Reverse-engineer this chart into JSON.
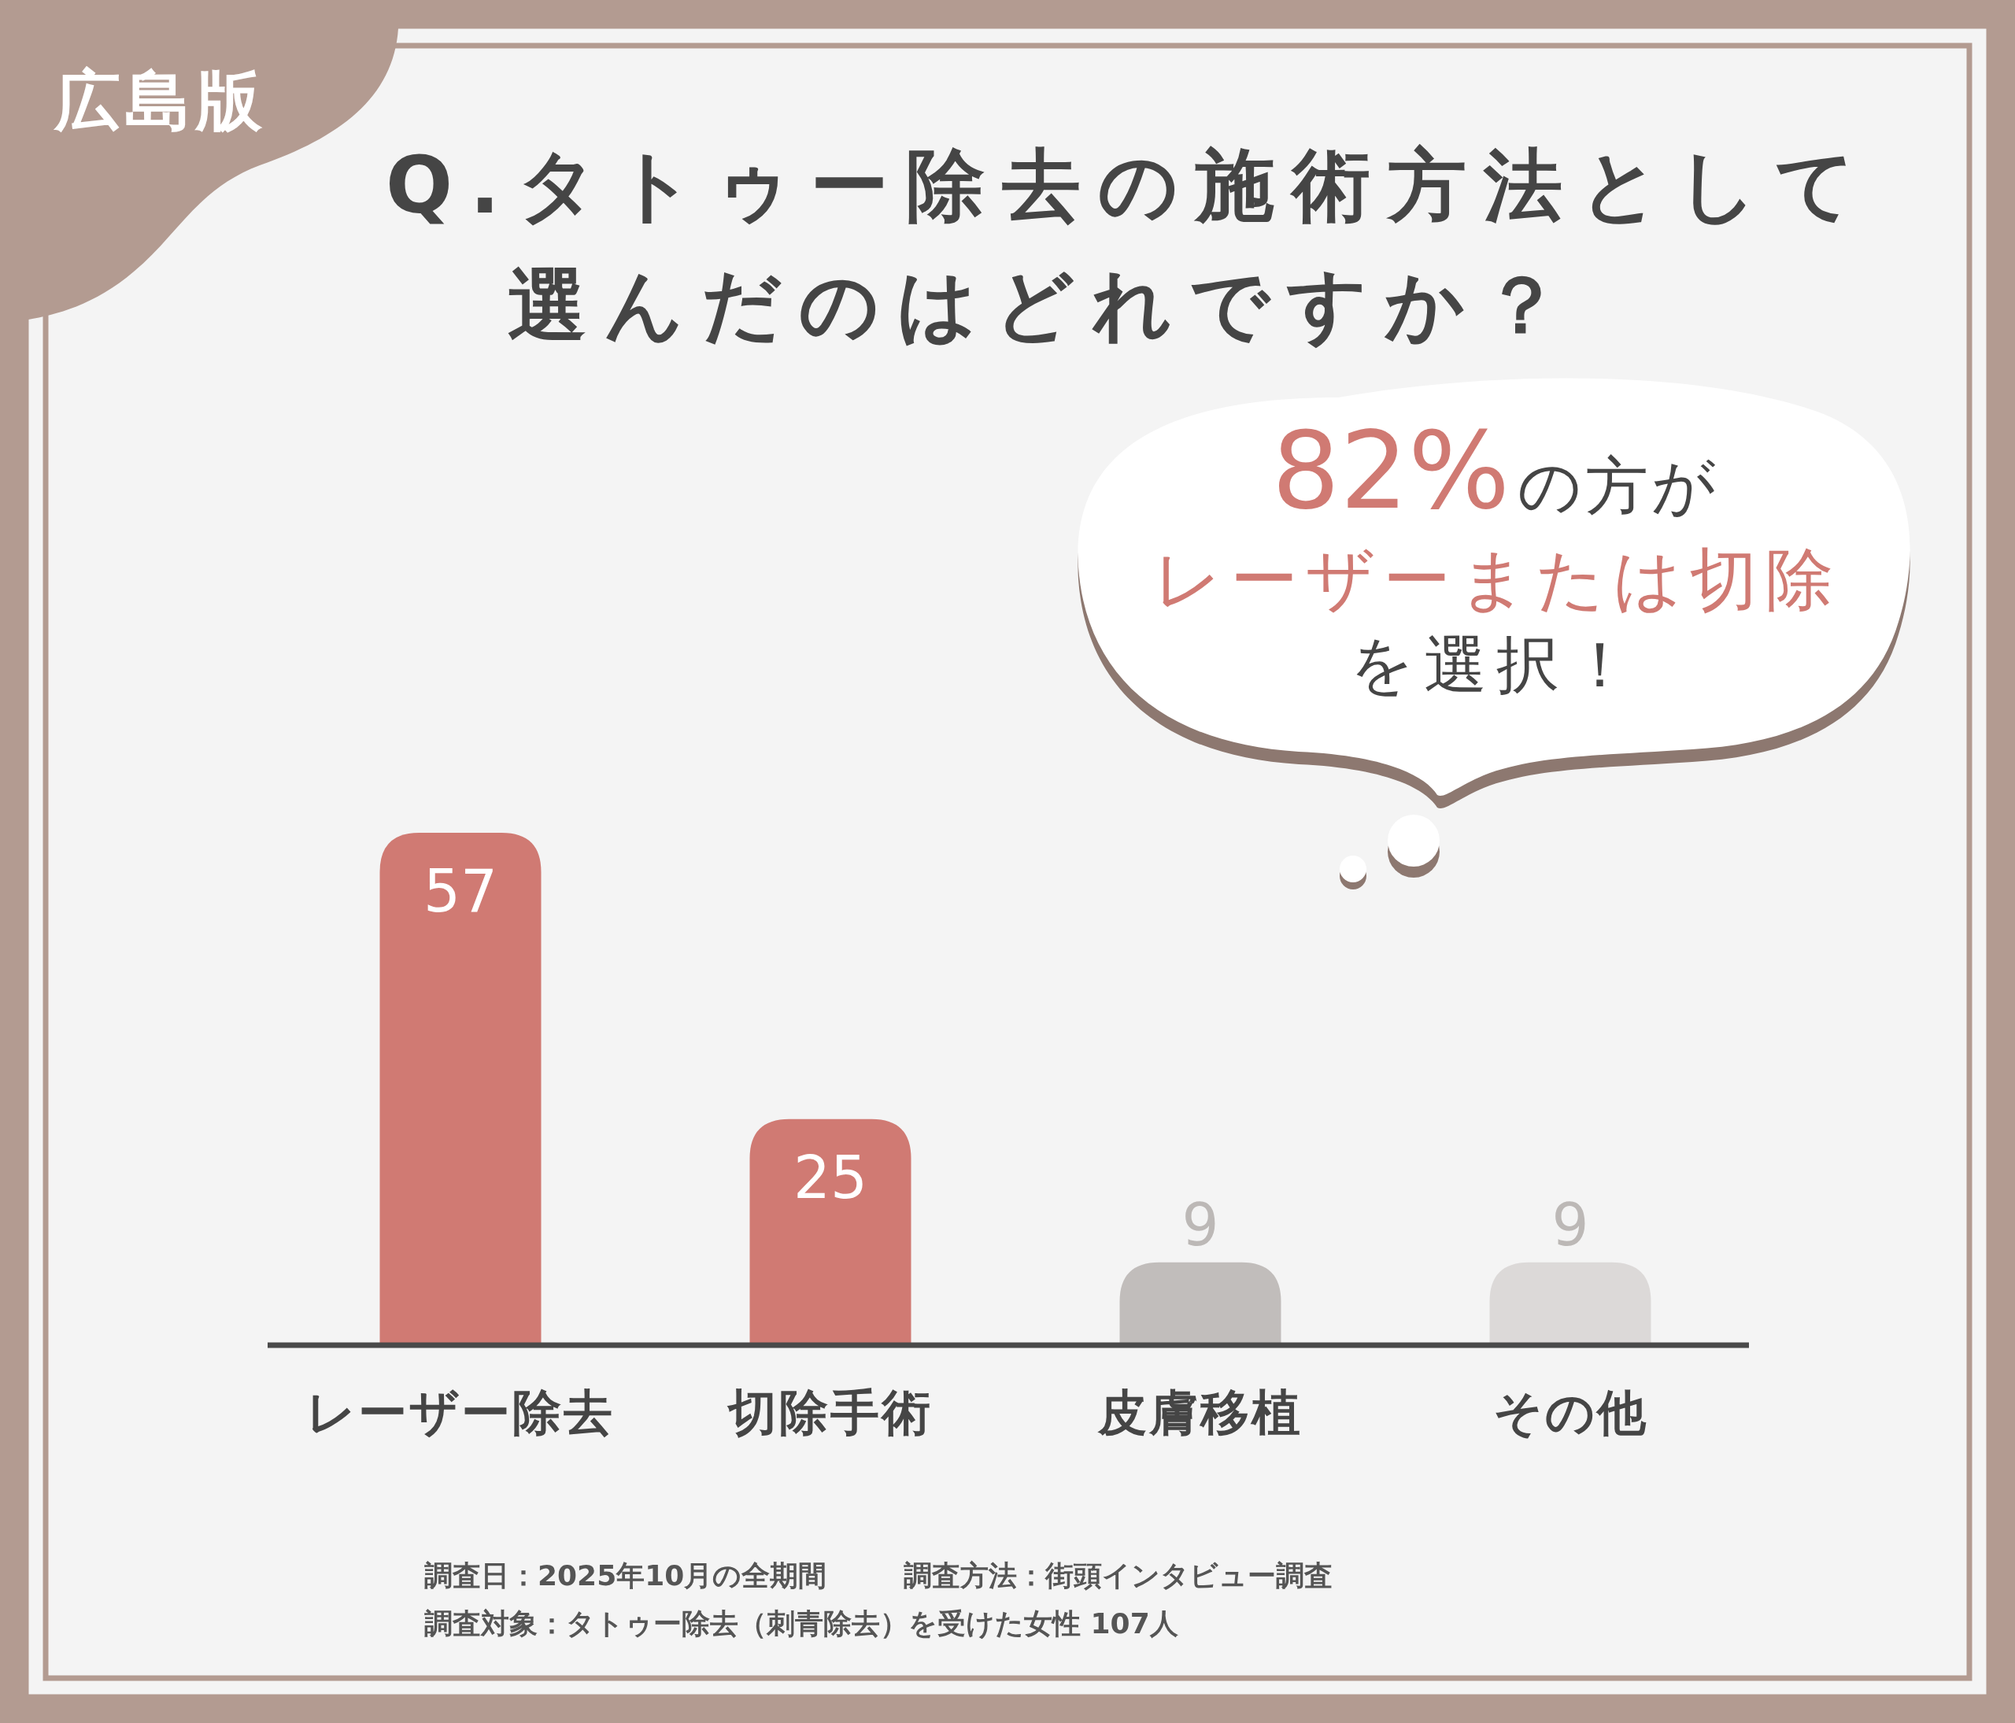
{
  "chart_data": {
    "type": "bar",
    "title": "Q.タトゥー除去の施術方法として選んだのはどれですか？",
    "categories": [
      "レーザー除去",
      "切除手術",
      "皮膚移植",
      "その他"
    ],
    "values": [
      57,
      25,
      9,
      9
    ],
    "colors": [
      "#d07a73",
      "#d07a73",
      "#c1bdbb",
      "#dcd9d8"
    ],
    "data_labels": true,
    "annotations": [
      "広島版",
      "82%",
      "の方が",
      "レーザーまたは切除",
      "を選択！",
      "調査日：2025年10月の全期間",
      "調査方法：街頭インタビュー調査",
      "調査対象：タトゥー除去（刺青除去）を受けた女性 107人"
    ]
  }
}
